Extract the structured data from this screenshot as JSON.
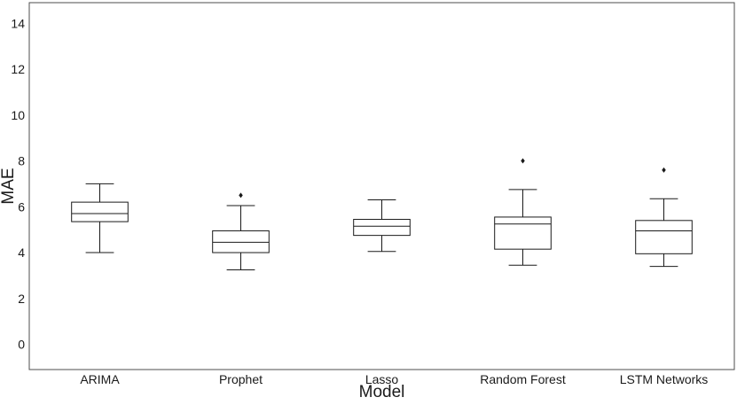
{
  "chart_data": {
    "type": "box",
    "title": "",
    "xlabel": "Model",
    "ylabel": "MAE",
    "ylim": [
      -1.1,
      14.9
    ],
    "yticks": [
      0,
      2,
      4,
      6,
      8,
      10,
      12,
      14
    ],
    "grid": false,
    "categories": [
      "ARIMA",
      "Prophet",
      "Lasso",
      "Random Forest",
      "LSTM Networks"
    ],
    "boxes": [
      {
        "category": "ARIMA",
        "whisker_low": 4.0,
        "q1": 5.35,
        "median": 5.7,
        "q3": 6.2,
        "whisker_high": 7.0,
        "outliers": []
      },
      {
        "category": "Prophet",
        "whisker_low": 3.25,
        "q1": 4.0,
        "median": 4.45,
        "q3": 4.95,
        "whisker_high": 6.05,
        "outliers": [
          6.5
        ]
      },
      {
        "category": "Lasso",
        "whisker_low": 4.05,
        "q1": 4.75,
        "median": 5.15,
        "q3": 5.45,
        "whisker_high": 6.3,
        "outliers": []
      },
      {
        "category": "Random Forest",
        "whisker_low": 3.45,
        "q1": 4.15,
        "median": 5.25,
        "q3": 5.55,
        "whisker_high": 6.75,
        "outliers": [
          8.0
        ]
      },
      {
        "category": "LSTM Networks",
        "whisker_low": 3.4,
        "q1": 3.95,
        "median": 4.95,
        "q3": 5.4,
        "whisker_high": 6.35,
        "outliers": [
          7.6
        ]
      }
    ]
  }
}
